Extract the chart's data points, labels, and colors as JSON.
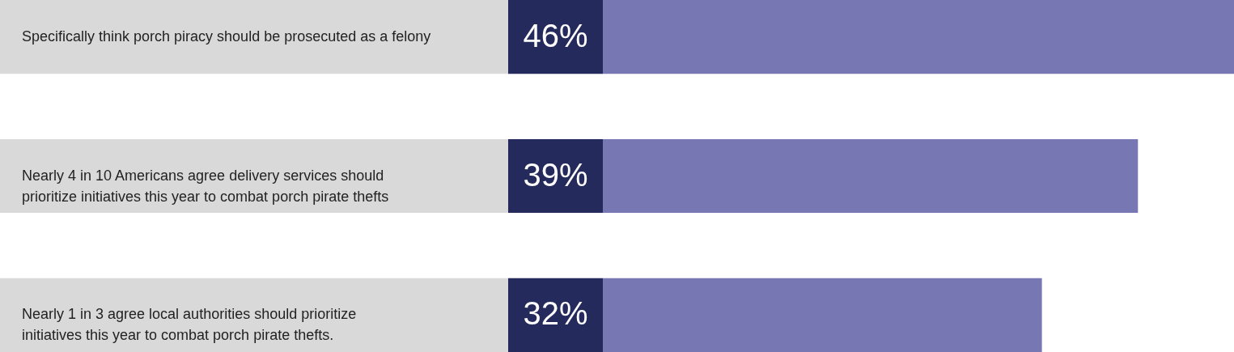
{
  "chart_data": {
    "type": "bar",
    "orientation": "horizontal",
    "categories": [
      "Specifically think porch piracy should be prosecuted as a felony",
      "Nearly 4 in 10 Americans agree delivery services should prioritize initiatives this year to combat porch pirate thefts",
      "Nearly 1 in 3 agree local authorities should prioritize initiatives this year to combat porch pirate thefts."
    ],
    "values": [
      46,
      39,
      32
    ],
    "value_labels": [
      "46%",
      "39%",
      "32%"
    ],
    "color": "#7777b3"
  }
}
